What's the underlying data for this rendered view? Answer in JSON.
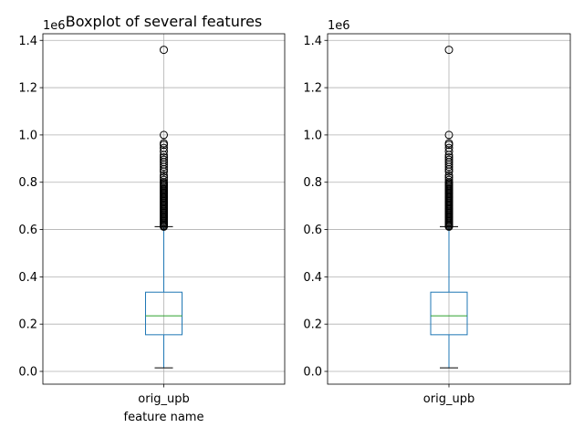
{
  "chart_data": [
    {
      "type": "boxplot",
      "title": "Boxplot of several features",
      "xlabel": "feature name",
      "ylabel": "",
      "y_scale_label": "1e6",
      "categories": [
        "orig_upb"
      ],
      "ylim": [
        -0.054,
        1.428
      ],
      "yticks": [
        0.0,
        0.2,
        0.4,
        0.6,
        0.8,
        1.0,
        1.2,
        1.4
      ],
      "ytick_labels": [
        "0.0",
        "0.2",
        "0.4",
        "0.6",
        "0.8",
        "1.0",
        "1.2",
        "1.4"
      ],
      "grid": true,
      "boxes": [
        {
          "name": "orig_upb",
          "whisker_low": 0.015,
          "q1": 0.155,
          "median": 0.235,
          "q3": 0.335,
          "whisker_high": 0.612,
          "outliers": [
            0.612,
            0.615,
            0.62,
            0.625,
            0.63,
            0.635,
            0.64,
            0.645,
            0.65,
            0.655,
            0.66,
            0.665,
            0.67,
            0.675,
            0.68,
            0.685,
            0.69,
            0.695,
            0.7,
            0.705,
            0.71,
            0.715,
            0.72,
            0.725,
            0.73,
            0.735,
            0.74,
            0.745,
            0.75,
            0.755,
            0.76,
            0.765,
            0.77,
            0.775,
            0.78,
            0.785,
            0.79,
            0.795,
            0.8,
            0.81,
            0.82,
            0.83,
            0.845,
            0.855,
            0.865,
            0.875,
            0.885,
            0.895,
            0.905,
            0.915,
            0.93,
            0.945,
            0.958,
            0.965,
            1.0,
            1.36
          ]
        }
      ]
    },
    {
      "type": "boxplot",
      "title": "",
      "xlabel": "",
      "ylabel": "",
      "y_scale_label": "1e6",
      "categories": [
        "orig_upb"
      ],
      "ylim": [
        -0.054,
        1.428
      ],
      "yticks": [
        0.0,
        0.2,
        0.4,
        0.6,
        0.8,
        1.0,
        1.2,
        1.4
      ],
      "ytick_labels": [
        "0.0",
        "0.2",
        "0.4",
        "0.6",
        "0.8",
        "1.0",
        "1.2",
        "1.4"
      ],
      "grid": true,
      "boxes": [
        {
          "name": "orig_upb",
          "whisker_low": 0.015,
          "q1": 0.155,
          "median": 0.235,
          "q3": 0.335,
          "whisker_high": 0.612,
          "outliers": [
            0.612,
            0.615,
            0.62,
            0.625,
            0.63,
            0.635,
            0.64,
            0.645,
            0.65,
            0.655,
            0.66,
            0.665,
            0.67,
            0.675,
            0.68,
            0.685,
            0.69,
            0.695,
            0.7,
            0.705,
            0.71,
            0.715,
            0.72,
            0.725,
            0.73,
            0.735,
            0.74,
            0.745,
            0.75,
            0.755,
            0.76,
            0.765,
            0.77,
            0.775,
            0.78,
            0.785,
            0.79,
            0.795,
            0.8,
            0.81,
            0.82,
            0.83,
            0.845,
            0.855,
            0.865,
            0.875,
            0.885,
            0.895,
            0.905,
            0.915,
            0.93,
            0.945,
            0.958,
            0.965,
            1.0,
            1.36
          ]
        }
      ]
    }
  ],
  "colors": {
    "box": "#1f77b4",
    "median": "#2ca02c",
    "whisker_cap": "#000000",
    "grid": "#b0b0b0",
    "frame": "#000000"
  }
}
